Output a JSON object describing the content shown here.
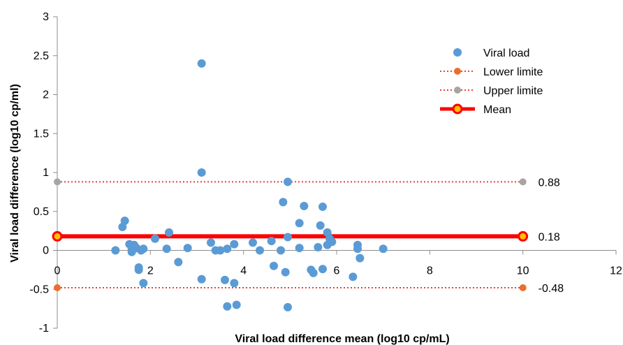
{
  "chart_data": {
    "type": "scatter",
    "xlabel": "Viral load difference mean (log10 cp/mL)",
    "ylabel": "Viral load difference (log10 cp/ml)",
    "xlim": [
      0,
      12
    ],
    "ylim": [
      -1,
      3
    ],
    "x_ticks": [
      "0",
      "2",
      "4",
      "6",
      "8",
      "10",
      "12"
    ],
    "y_ticks": [
      "-1",
      "-0.5",
      "0",
      "0.5",
      "1",
      "1.5",
      "2",
      "2.5",
      "3"
    ],
    "grid": false,
    "legend_position": "top-right",
    "series": [
      {
        "name": "Viral load",
        "color": "#5B9BD5",
        "marker": "circle",
        "points": [
          [
            1.25,
            0.0
          ],
          [
            1.4,
            0.3
          ],
          [
            1.45,
            0.38
          ],
          [
            1.55,
            0.08
          ],
          [
            1.6,
            0.02
          ],
          [
            1.6,
            -0.02
          ],
          [
            1.65,
            0.07
          ],
          [
            1.7,
            0.03
          ],
          [
            1.75,
            -0.22
          ],
          [
            1.75,
            -0.25
          ],
          [
            1.8,
            0.0
          ],
          [
            1.85,
            0.02
          ],
          [
            1.85,
            -0.42
          ],
          [
            2.1,
            0.15
          ],
          [
            2.35,
            0.02
          ],
          [
            2.4,
            0.23
          ],
          [
            2.6,
            -0.15
          ],
          [
            2.8,
            0.03
          ],
          [
            3.1,
            2.4
          ],
          [
            3.1,
            1.0
          ],
          [
            3.1,
            -0.37
          ],
          [
            3.3,
            0.1
          ],
          [
            3.4,
            0.0
          ],
          [
            3.5,
            0.0
          ],
          [
            3.6,
            -0.38
          ],
          [
            3.65,
            0.02
          ],
          [
            3.65,
            -0.72
          ],
          [
            3.8,
            0.08
          ],
          [
            3.8,
            -0.42
          ],
          [
            3.85,
            -0.7
          ],
          [
            4.2,
            0.1
          ],
          [
            4.35,
            0.0
          ],
          [
            4.6,
            0.12
          ],
          [
            4.65,
            -0.2
          ],
          [
            4.8,
            0.0
          ],
          [
            4.85,
            0.62
          ],
          [
            4.9,
            -0.28
          ],
          [
            4.95,
            0.88
          ],
          [
            4.95,
            0.17
          ],
          [
            4.95,
            -0.73
          ],
          [
            5.2,
            0.35
          ],
          [
            5.2,
            0.03
          ],
          [
            5.3,
            0.57
          ],
          [
            5.45,
            -0.25
          ],
          [
            5.5,
            -0.29
          ],
          [
            5.6,
            0.04
          ],
          [
            5.65,
            0.32
          ],
          [
            5.7,
            0.56
          ],
          [
            5.7,
            -0.24
          ],
          [
            5.8,
            0.23
          ],
          [
            5.8,
            0.07
          ],
          [
            5.85,
            0.15
          ],
          [
            5.9,
            0.11
          ],
          [
            6.35,
            -0.34
          ],
          [
            6.45,
            0.07
          ],
          [
            6.45,
            0.02
          ],
          [
            6.5,
            -0.1
          ],
          [
            7.0,
            0.02
          ]
        ]
      },
      {
        "name": "Lower limite",
        "color": "#E8702A",
        "line_color": "#E8413B",
        "style": "dotted",
        "points": [
          [
            0,
            -0.48
          ],
          [
            10,
            -0.48
          ]
        ]
      },
      {
        "name": "Upper limite",
        "color": "#A5A5A5",
        "line_color": "#E8413B",
        "style": "dotted",
        "points": [
          [
            0,
            0.88
          ],
          [
            10,
            0.88
          ]
        ]
      },
      {
        "name": "Mean",
        "color": "#FF0000",
        "style": "solid",
        "points": [
          [
            0,
            0.18
          ],
          [
            10,
            0.18
          ]
        ]
      }
    ],
    "reference_labels": [
      {
        "value": 0.88,
        "text": "0.88"
      },
      {
        "value": 0.18,
        "text": "0.18"
      },
      {
        "value": -0.48,
        "text": "-0.48"
      }
    ]
  }
}
